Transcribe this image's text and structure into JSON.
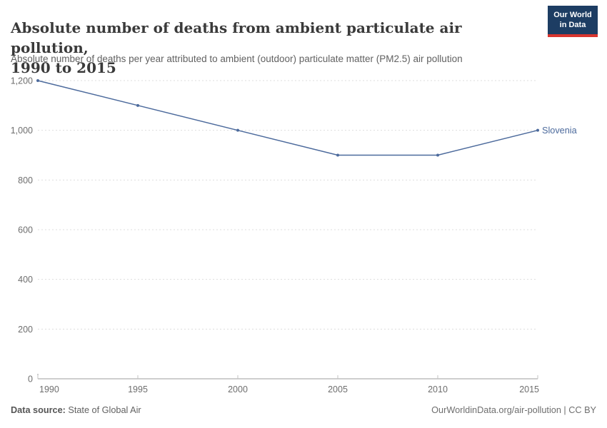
{
  "header": {
    "title_line1": "Absolute number of deaths from ambient particulate air pollution,",
    "title_line2": "1990 to 2015",
    "subtitle": "Absolute number of deaths per year attributed to ambient (outdoor) particulate matter (PM2.5) air pollution",
    "logo": {
      "line1": "Our World",
      "line2": "in Data",
      "bg_color": "#1d3d63",
      "accent_color": "#d8352f"
    }
  },
  "chart_data": {
    "type": "line",
    "title": "Absolute number of deaths from ambient particulate air pollution, 1990 to 2015",
    "xlabel": "",
    "ylabel": "",
    "x": [
      1990,
      1995,
      2000,
      2005,
      2010,
      2015
    ],
    "series": [
      {
        "name": "Slovenia",
        "color": "#4c6a9c",
        "values": [
          1200,
          1100,
          1000,
          900,
          900,
          1000
        ]
      }
    ],
    "end_label": "Slovenia",
    "ylim": [
      0,
      1200
    ],
    "yticks": [
      0,
      200,
      400,
      600,
      800,
      1000,
      1200
    ],
    "ytick_labels": [
      "0",
      "200",
      "400",
      "600",
      "800",
      "1,000",
      "1,200"
    ],
    "xticks": [
      1990,
      1995,
      2000,
      2005,
      2010,
      2015
    ],
    "grid": "horizontal-dashed",
    "legend_position": "end-of-line"
  },
  "colors": {
    "line": "#4c6a9c",
    "grid": "#dddddd",
    "axis": "#9e9e9e",
    "tick": "#c3c3c3",
    "tick_label": "#6e6e6e"
  },
  "footer": {
    "datasource_label": "Data source:",
    "datasource_value": "State of Global Air",
    "attribution": "OurWorldinData.org/air-pollution | CC BY"
  }
}
